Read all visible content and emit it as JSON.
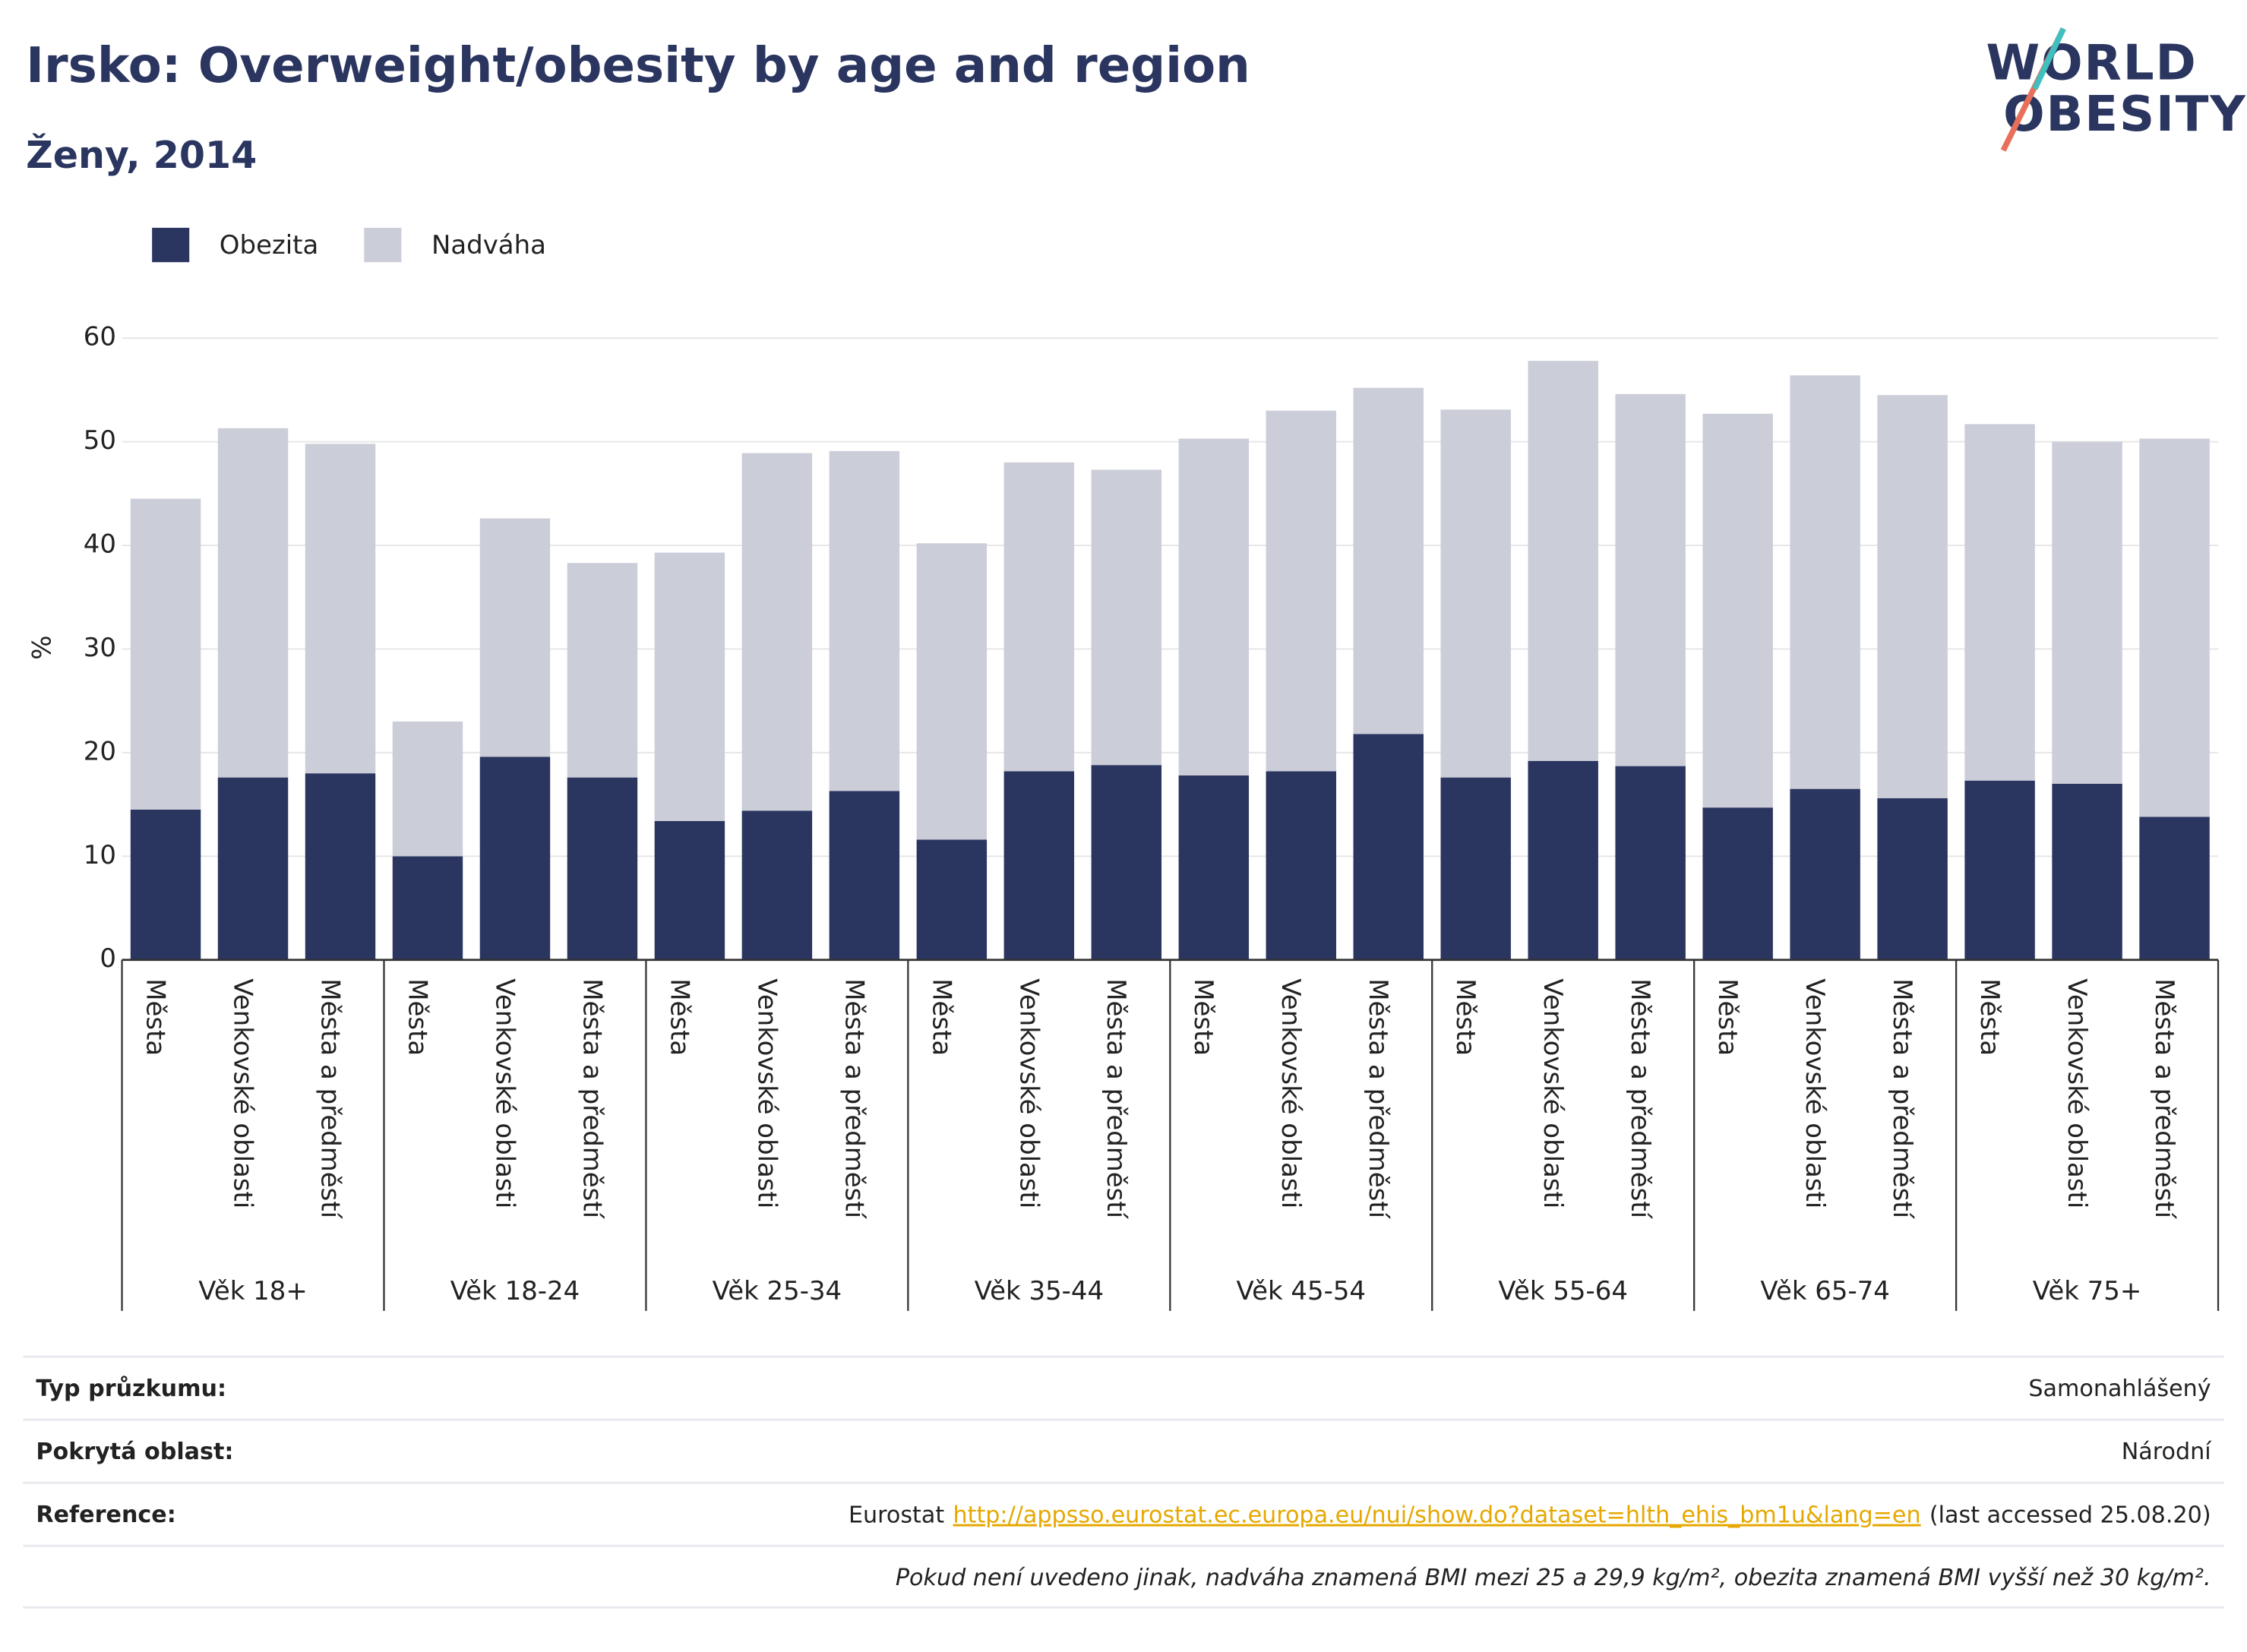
{
  "chart_data": {
    "type": "stacked_bar",
    "title": "Irsko: Overweight/obesity by age and region",
    "subtitle": "Ženy, 2014",
    "logo": [
      "WORLD",
      "OBESITY"
    ],
    "y_label": "%",
    "categories": [
      "Města",
      "Venkovské oblasti",
      "Města a předměstí",
      "Města",
      "Venkovské oblasti",
      "Města a předměstí",
      "Města",
      "Venkovské oblasti",
      "Města a předměstí",
      "Města",
      "Venkovské oblasti",
      "Města a předměstí",
      "Města",
      "Venkovské oblasti",
      "Města a předměstí",
      "Města",
      "Venkovské oblasti",
      "Města a předměstí",
      "Města",
      "Venkovské oblasti",
      "Města a předměstí",
      "Města",
      "Venkovské oblasti",
      "Města a předměstí"
    ],
    "groups": [
      "Věk 18+",
      "Věk 18-24",
      "Věk 25-34",
      "Věk 35-44",
      "Věk 45-54",
      "Věk 55-64",
      "Věk 65-74",
      "Věk 75+"
    ],
    "series": [
      {
        "name": "Obezita",
        "color": "#2a3560",
        "values": [
          14.5,
          17.6,
          18.0,
          10.0,
          19.6,
          17.6,
          13.4,
          14.4,
          16.3,
          11.6,
          18.2,
          18.8,
          17.8,
          18.2,
          21.8,
          17.6,
          19.2,
          18.7,
          14.7,
          16.5,
          15.6,
          17.3,
          17.0,
          13.8
        ]
      },
      {
        "name": "Nadváha",
        "color": "#cbcdd8",
        "values": [
          30.0,
          33.7,
          31.8,
          13.0,
          23.0,
          20.7,
          25.9,
          34.5,
          32.8,
          28.6,
          29.8,
          28.5,
          32.5,
          34.8,
          33.4,
          35.5,
          38.6,
          35.9,
          38.0,
          39.9,
          38.9,
          34.4,
          33.0,
          36.5
        ]
      }
    ],
    "ylim": [
      0,
      60
    ],
    "yticks": [
      0,
      10,
      20,
      30,
      40,
      50,
      60
    ],
    "grid": true,
    "legend": "top-left"
  },
  "footer": {
    "rows": [
      {
        "label": "Typ průzkumu:",
        "value": "Samonahlášený"
      },
      {
        "label": "Pokrytá oblast:",
        "value": "Národní"
      }
    ],
    "reference": {
      "label": "Reference:",
      "source": "Eurostat",
      "link": "http://appsso.eurostat.ec.europa.eu/nui/show.do?dataset=hlth_ehis_bm1u&lang=en",
      "accessed": "(last accessed 25.08.20)"
    },
    "note": "Pokud není uvedeno jinak, nadváha znamená BMI mezi 25 a 29,9 kg/m², obezita znamená BMI vyšší než 30 kg/m²."
  }
}
